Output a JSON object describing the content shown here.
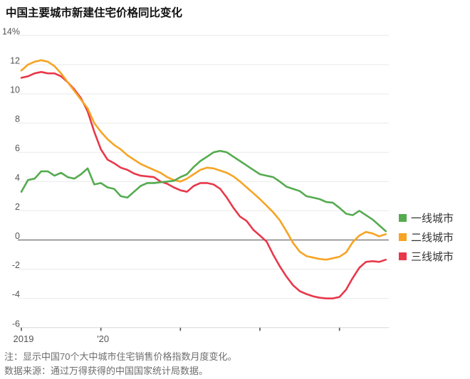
{
  "page": {
    "title": "中国主要城市新建住宅价格同比变化"
  },
  "chart_data": {
    "type": "line",
    "title": "中国主要城市新建住宅价格同比变化",
    "unit": "%",
    "ylim": [
      -6,
      14
    ],
    "grid": true,
    "legend_position": "right",
    "yticks": [
      14,
      12,
      10,
      8,
      6,
      4,
      2,
      0,
      -2,
      -4,
      -6
    ],
    "ytick_labels": [
      "14%",
      "12",
      "10",
      "8",
      "6",
      "4",
      "2",
      "0",
      "-2",
      "-4",
      "-6"
    ],
    "x_tick_labels": [
      {
        "label": "2019",
        "month_index": 0
      },
      {
        "label": "'20",
        "month_index": 12
      },
      {
        "label": "",
        "month_index": 24
      },
      {
        "label": "",
        "month_index": 36
      },
      {
        "label": "",
        "month_index": 48
      }
    ],
    "x_months": [
      "2019-01",
      "2019-02",
      "2019-03",
      "2019-04",
      "2019-05",
      "2019-06",
      "2019-07",
      "2019-08",
      "2019-09",
      "2019-10",
      "2019-11",
      "2019-12",
      "2020-01",
      "2020-02",
      "2020-03",
      "2020-04",
      "2020-05",
      "2020-06",
      "2020-07",
      "2020-08",
      "2020-09",
      "2020-10",
      "2020-11",
      "2020-12",
      "2021-01",
      "2021-02",
      "2021-03",
      "2021-04",
      "2021-05",
      "2021-06",
      "2021-07",
      "2021-08",
      "2021-09",
      "2021-10",
      "2021-11",
      "2021-12",
      "2022-01",
      "2022-02",
      "2022-03",
      "2022-04",
      "2022-05",
      "2022-06",
      "2022-07",
      "2022-08",
      "2022-09",
      "2022-10",
      "2022-11",
      "2022-12",
      "2023-01",
      "2023-02",
      "2023-03",
      "2023-04",
      "2023-05",
      "2023-06",
      "2023-07",
      "2023-08"
    ],
    "series": [
      {
        "name": "一线城市",
        "color": "#55ab4f",
        "values": [
          3.3,
          4.1,
          4.2,
          4.7,
          4.7,
          4.4,
          4.6,
          4.3,
          4.2,
          4.5,
          4.9,
          3.8,
          3.9,
          3.6,
          3.5,
          3.0,
          2.9,
          3.3,
          3.7,
          3.9,
          3.9,
          3.95,
          4.0,
          4.05,
          4.3,
          4.5,
          5.0,
          5.4,
          5.7,
          6.0,
          6.1,
          6.0,
          5.7,
          5.4,
          5.1,
          4.8,
          4.5,
          4.4,
          4.3,
          4.0,
          3.65,
          3.5,
          3.35,
          3.0,
          2.9,
          2.8,
          2.6,
          2.55,
          2.2,
          1.8,
          1.7,
          2.0,
          1.7,
          1.4,
          1.0,
          0.6
        ]
      },
      {
        "name": "二线城市",
        "color": "#f6a424",
        "values": [
          11.6,
          12.0,
          12.2,
          12.3,
          12.2,
          11.9,
          11.4,
          10.8,
          10.2,
          9.6,
          9.0,
          8.0,
          7.4,
          6.9,
          6.5,
          6.2,
          5.8,
          5.5,
          5.2,
          5.0,
          4.8,
          4.6,
          4.3,
          4.1,
          4.0,
          4.2,
          4.5,
          4.8,
          4.95,
          4.9,
          4.75,
          4.6,
          4.35,
          4.0,
          3.6,
          3.2,
          2.8,
          2.35,
          1.9,
          1.35,
          0.6,
          -0.2,
          -0.8,
          -1.1,
          -1.2,
          -1.3,
          -1.35,
          -1.25,
          -1.15,
          -0.85,
          -0.15,
          0.3,
          0.55,
          0.45,
          0.25,
          0.4
        ]
      },
      {
        "name": "三线城市",
        "color": "#e8384a",
        "values": [
          11.1,
          11.2,
          11.4,
          11.5,
          11.4,
          11.4,
          11.2,
          10.8,
          10.3,
          9.7,
          8.8,
          7.4,
          6.2,
          5.5,
          5.25,
          4.95,
          4.8,
          4.55,
          4.4,
          4.35,
          4.3,
          4.0,
          3.85,
          3.6,
          3.4,
          3.3,
          3.7,
          3.9,
          3.9,
          3.8,
          3.5,
          2.9,
          2.2,
          1.6,
          1.3,
          0.7,
          0.3,
          -0.1,
          -1.0,
          -1.8,
          -2.5,
          -3.1,
          -3.5,
          -3.7,
          -3.85,
          -3.95,
          -4.0,
          -4.0,
          -3.9,
          -3.4,
          -2.6,
          -1.9,
          -1.5,
          -1.45,
          -1.5,
          -1.35
        ]
      }
    ]
  },
  "notes": {
    "line1": "注：显示中国70个大中城市住宅销售价格指数月度变化。",
    "line2": "数据来源：通过万得获得的中国国家统计局数据。"
  },
  "style": {
    "grid_color": "#e9e9e9",
    "zero_line_color": "#808080",
    "axis_line_color": "#d8d8d8",
    "tick_color": "#555555",
    "label_color": "#555555"
  }
}
